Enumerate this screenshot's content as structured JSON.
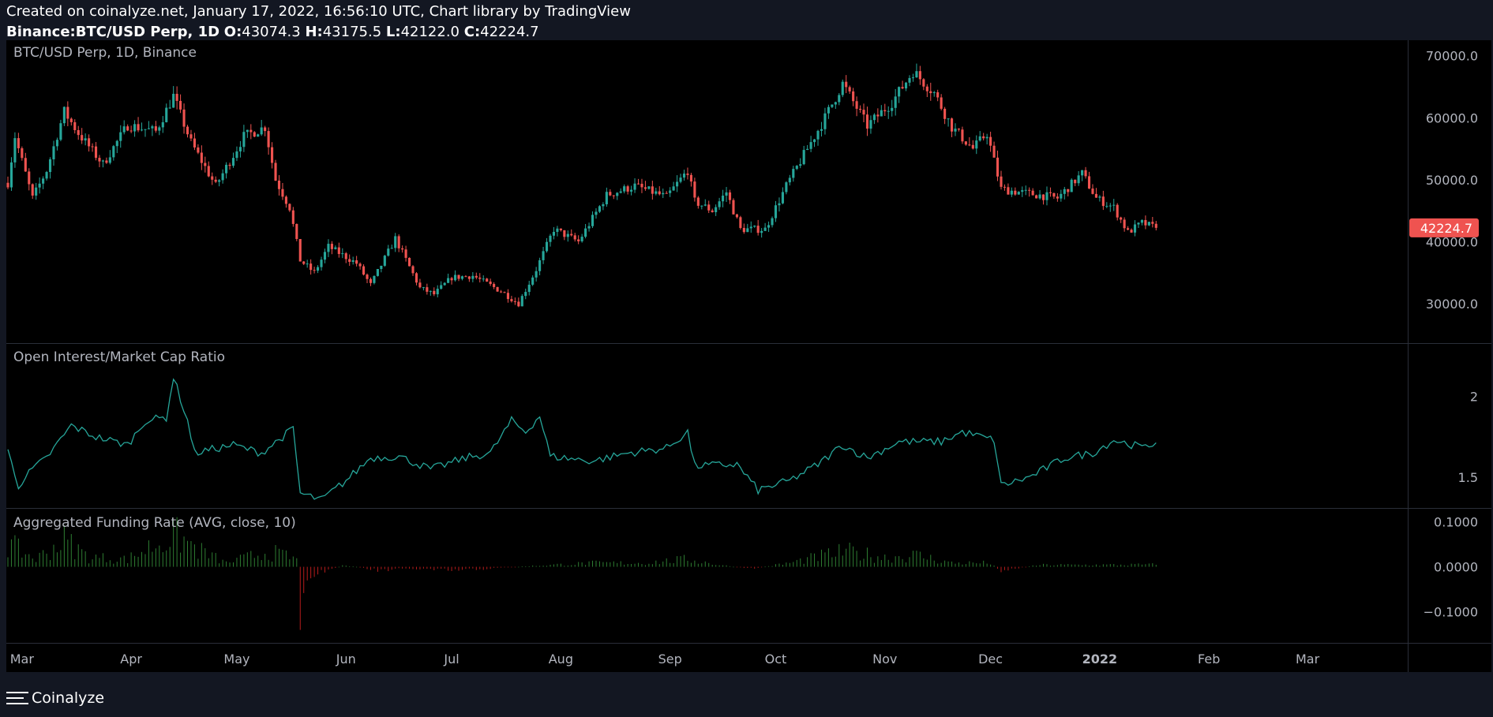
{
  "header": {
    "line1": "Created on coinalyze.net, January 17, 2022, 16:56:10 UTC, Chart library by TradingView",
    "symbol": "Binance:BTC/USD Perp, 1D",
    "o_label": "O:",
    "o": "43074.3",
    "h_label": "H:",
    "h": "43175.5",
    "l_label": "L:",
    "l": "42122.0",
    "c_label": "C:",
    "c": "42224.7"
  },
  "footer": {
    "label": "Coinalyze"
  },
  "colors": {
    "background": "#131722",
    "pane": "#000000",
    "up": "#26a69a",
    "down": "#ef5350",
    "line": "#26a69a",
    "bar_up": "#2e7d32",
    "bar_down": "#b71c1c",
    "text": "#b2b5be"
  },
  "chart_data": [
    {
      "type": "candlestick",
      "title": "BTC/USD Perp, 1D, Binance",
      "ylim": [
        24000,
        72000
      ],
      "yticks": [
        "70000.0",
        "60000.0",
        "50000.0",
        "40000.0",
        "30000.0"
      ],
      "last_price": "42224.7",
      "anchors": [
        [
          "2021-02-25",
          49500
        ],
        [
          "2021-02-27",
          57000
        ],
        [
          "2021-03-04",
          47000
        ],
        [
          "2021-03-08",
          51500
        ],
        [
          "2021-03-13",
          61000
        ],
        [
          "2021-03-17",
          57500
        ],
        [
          "2021-03-24",
          52500
        ],
        [
          "2021-03-31",
          58800
        ],
        [
          "2021-04-08",
          57800
        ],
        [
          "2021-04-13",
          63500
        ],
        [
          "2021-04-18",
          56000
        ],
        [
          "2021-04-25",
          49000
        ],
        [
          "2021-05-03",
          57000
        ],
        [
          "2021-05-09",
          58500
        ],
        [
          "2021-05-12",
          50000
        ],
        [
          "2021-05-16",
          45500
        ],
        [
          "2021-05-19",
          37000
        ],
        [
          "2021-05-23",
          35000
        ],
        [
          "2021-05-27",
          39200
        ],
        [
          "2021-06-04",
          36500
        ],
        [
          "2021-06-08",
          33000
        ],
        [
          "2021-06-15",
          40500
        ],
        [
          "2021-06-22",
          32500
        ],
        [
          "2021-06-26",
          31500
        ],
        [
          "2021-07-01",
          34200
        ],
        [
          "2021-07-07",
          34500
        ],
        [
          "2021-07-15",
          32000
        ],
        [
          "2021-07-20",
          30000
        ],
        [
          "2021-07-25",
          35500
        ],
        [
          "2021-07-30",
          42000
        ],
        [
          "2021-08-06",
          40000
        ],
        [
          "2021-08-14",
          47500
        ],
        [
          "2021-08-22",
          49000
        ],
        [
          "2021-08-31",
          47200
        ],
        [
          "2021-09-06",
          51500
        ],
        [
          "2021-09-08",
          46500
        ],
        [
          "2021-09-13",
          45000
        ],
        [
          "2021-09-17",
          48000
        ],
        [
          "2021-09-21",
          42000
        ],
        [
          "2021-09-28",
          42000
        ],
        [
          "2021-10-04",
          49000
        ],
        [
          "2021-10-10",
          55000
        ],
        [
          "2021-10-15",
          60000
        ],
        [
          "2021-10-20",
          65500
        ],
        [
          "2021-10-27",
          58700
        ],
        [
          "2021-11-03",
          62500
        ],
        [
          "2021-11-09",
          67500
        ],
        [
          "2021-11-15",
          64000
        ],
        [
          "2021-11-20",
          58500
        ],
        [
          "2021-11-26",
          55000
        ],
        [
          "2021-11-30",
          57500
        ],
        [
          "2021-12-04",
          48500
        ],
        [
          "2021-12-09",
          48000
        ],
        [
          "2021-12-15",
          47500
        ],
        [
          "2021-12-20",
          47000
        ],
        [
          "2021-12-27",
          51000
        ],
        [
          "2021-12-31",
          47000
        ],
        [
          "2022-01-05",
          45500
        ],
        [
          "2022-01-09",
          41500
        ],
        [
          "2022-01-13",
          43000
        ],
        [
          "2022-01-17",
          42224.7
        ]
      ]
    },
    {
      "type": "line",
      "title": "Open Interest/Market Cap Ratio",
      "ylim": [
        1.33,
        2.3
      ],
      "yticks": [
        "2",
        "1.5"
      ],
      "anchors": [
        [
          "2021-02-25",
          1.66
        ],
        [
          "2021-02-28",
          1.45
        ],
        [
          "2021-03-04",
          1.55
        ],
        [
          "2021-03-08",
          1.62
        ],
        [
          "2021-03-15",
          1.82
        ],
        [
          "2021-03-22",
          1.75
        ],
        [
          "2021-03-31",
          1.7
        ],
        [
          "2021-04-05",
          1.85
        ],
        [
          "2021-04-11",
          1.87
        ],
        [
          "2021-04-13",
          2.12
        ],
        [
          "2021-04-17",
          1.85
        ],
        [
          "2021-04-19",
          1.65
        ],
        [
          "2021-04-30",
          1.7
        ],
        [
          "2021-05-08",
          1.65
        ],
        [
          "2021-05-17",
          1.8
        ],
        [
          "2021-05-19",
          1.4
        ],
        [
          "2021-05-25",
          1.36
        ],
        [
          "2021-06-01",
          1.48
        ],
        [
          "2021-06-08",
          1.62
        ],
        [
          "2021-06-16",
          1.63
        ],
        [
          "2021-06-25",
          1.55
        ],
        [
          "2021-07-05",
          1.62
        ],
        [
          "2021-07-12",
          1.65
        ],
        [
          "2021-07-18",
          1.85
        ],
        [
          "2021-07-22",
          1.78
        ],
        [
          "2021-07-26",
          1.88
        ],
        [
          "2021-07-29",
          1.63
        ],
        [
          "2021-08-10",
          1.6
        ],
        [
          "2021-08-20",
          1.65
        ],
        [
          "2021-08-31",
          1.68
        ],
        [
          "2021-09-06",
          1.78
        ],
        [
          "2021-09-08",
          1.57
        ],
        [
          "2021-09-20",
          1.58
        ],
        [
          "2021-09-26",
          1.42
        ],
        [
          "2021-10-05",
          1.48
        ],
        [
          "2021-10-13",
          1.58
        ],
        [
          "2021-10-20",
          1.7
        ],
        [
          "2021-10-27",
          1.62
        ],
        [
          "2021-11-05",
          1.72
        ],
        [
          "2021-11-17",
          1.72
        ],
        [
          "2021-11-23",
          1.78
        ],
        [
          "2021-12-02",
          1.73
        ],
        [
          "2021-12-04",
          1.45
        ],
        [
          "2021-12-12",
          1.5
        ],
        [
          "2021-12-22",
          1.62
        ],
        [
          "2021-12-30",
          1.65
        ],
        [
          "2022-01-05",
          1.73
        ],
        [
          "2022-01-14",
          1.68
        ],
        [
          "2022-01-17",
          1.72
        ]
      ]
    },
    {
      "type": "bar",
      "title": "Aggregated Funding Rate (AVG, close, 10)",
      "ylim": [
        -0.16,
        0.12
      ],
      "yticks": [
        "0.1000",
        "0.0000",
        "−0.1000"
      ],
      "anchors": [
        [
          "2021-02-25",
          0.06
        ],
        [
          "2021-03-05",
          0.02
        ],
        [
          "2021-03-13",
          0.07
        ],
        [
          "2021-03-20",
          0.025
        ],
        [
          "2021-03-31",
          0.02
        ],
        [
          "2021-04-08",
          0.06
        ],
        [
          "2021-04-14",
          0.08
        ],
        [
          "2021-04-21",
          0.04
        ],
        [
          "2021-04-28",
          0.01
        ],
        [
          "2021-05-10",
          0.04
        ],
        [
          "2021-05-18",
          0.02
        ],
        [
          "2021-05-19",
          -0.14
        ],
        [
          "2021-05-22",
          -0.02
        ],
        [
          "2021-06-01",
          0.005
        ],
        [
          "2021-06-10",
          -0.01
        ],
        [
          "2021-06-20",
          -0.005
        ],
        [
          "2021-07-01",
          -0.01
        ],
        [
          "2021-07-15",
          -0.003
        ],
        [
          "2021-07-25",
          0.003
        ],
        [
          "2021-08-10",
          0.01
        ],
        [
          "2021-08-25",
          0.01
        ],
        [
          "2021-09-06",
          0.02
        ],
        [
          "2021-09-15",
          0.005
        ],
        [
          "2021-09-24",
          -0.005
        ],
        [
          "2021-10-05",
          0.01
        ],
        [
          "2021-10-15",
          0.03
        ],
        [
          "2021-10-21",
          0.04
        ],
        [
          "2021-11-01",
          0.025
        ],
        [
          "2021-11-10",
          0.03
        ],
        [
          "2021-11-20",
          0.01
        ],
        [
          "2021-12-01",
          0.01
        ],
        [
          "2021-12-04",
          -0.01
        ],
        [
          "2021-12-15",
          0.005
        ],
        [
          "2022-01-01",
          0.005
        ],
        [
          "2022-01-17",
          0.006
        ]
      ]
    }
  ],
  "x_axis": {
    "ticks": [
      [
        "2021-03-01",
        "Mar"
      ],
      [
        "2021-04-01",
        "Apr"
      ],
      [
        "2021-05-01",
        "May"
      ],
      [
        "2021-06-01",
        "Jun"
      ],
      [
        "2021-07-01",
        "Jul"
      ],
      [
        "2021-08-01",
        "Aug"
      ],
      [
        "2021-09-01",
        "Sep"
      ],
      [
        "2021-10-01",
        "Oct"
      ],
      [
        "2021-11-01",
        "Nov"
      ],
      [
        "2021-12-01",
        "Dec"
      ],
      [
        "2022-01-01",
        "2022"
      ],
      [
        "2022-02-01",
        "Feb"
      ],
      [
        "2022-03-01",
        "Mar"
      ]
    ],
    "range": [
      "2021-02-25",
      "2022-03-29"
    ]
  }
}
